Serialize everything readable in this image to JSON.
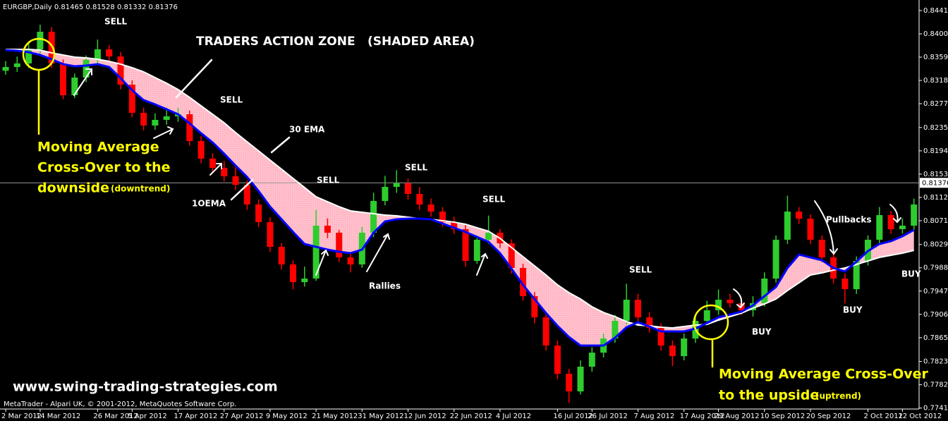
{
  "chart_data": {
    "type": "candlestick",
    "title": "EURGBP,Daily  0.81465 0.81528 0.81332 0.81376",
    "categories": [
      "2 Mar 2012",
      null,
      null,
      "14 Mar 2012",
      null,
      null,
      null,
      null,
      "26 Mar 2012",
      null,
      null,
      "5 Apr 2012",
      null,
      null,
      null,
      "17 Apr 2012",
      null,
      null,
      null,
      "27 Apr 2012",
      null,
      null,
      null,
      "9 May 2012",
      null,
      null,
      null,
      "21 May 2012",
      null,
      null,
      null,
      "31 May 2012",
      null,
      null,
      null,
      "12 Jun 2012",
      null,
      null,
      null,
      "22 Jun 2012",
      null,
      null,
      null,
      "4 Jul 2012",
      null,
      null,
      null,
      null,
      "16 Jul 2012",
      null,
      null,
      "26 Jul 2012",
      null,
      null,
      null,
      "7 Aug 2012",
      null,
      null,
      null,
      "17 Aug 2012",
      null,
      null,
      "29 Aug 2012",
      null,
      null,
      null,
      "10 Sep 2012",
      null,
      null,
      null,
      "20 Sep 2012",
      null,
      null,
      null,
      null,
      "2 Oct 2012",
      null,
      null,
      "12 Oct 2012",
      null
    ],
    "open": [
      0.8335,
      0.83416,
      0.83479,
      0.83727,
      0.84037,
      0.83479,
      0.8292,
      0.8323,
      0.83541,
      0.83727,
      0.83603,
      0.83106,
      0.82609,
      0.82386,
      0.82485,
      0.82547,
      0.82584,
      0.82112,
      0.81802,
      0.8164,
      0.81491,
      0.81342,
      0.80995,
      0.80684,
      0.80249,
      0.79939,
      0.79628,
      0.7969,
      0.80622,
      0.80498,
      0.80063,
      0.79939,
      0.80498,
      0.81057,
      0.81305,
      0.81367,
      0.81181,
      0.80995,
      0.8087,
      0.80684,
      0.8056,
      0.80001,
      0.80374,
      0.80498,
      0.80311,
      0.79877,
      0.7938,
      0.79007,
      0.78511,
      0.78014,
      0.77703,
      0.78138,
      0.78386,
      0.78635,
      0.78945,
      0.79318,
      0.79007,
      0.78821,
      0.78511,
      0.78324,
      0.78635,
      0.78945,
      0.79132,
      0.79318,
      0.79256,
      0.79132,
      0.79256,
      0.7969,
      0.80374,
      0.8087,
      0.80746,
      0.80374,
      0.80063,
      0.7969,
      0.79504,
      0.80001,
      0.80374,
      0.80808,
      0.8056,
      0.80622
    ],
    "high": [
      0.8352,
      0.836,
      0.8385,
      0.8416,
      0.8412,
      0.8355,
      0.833,
      0.8362,
      0.839,
      0.838,
      0.8368,
      0.8318,
      0.827,
      0.826,
      0.827,
      0.827,
      0.8265,
      0.822,
      0.819,
      0.8176,
      0.817,
      0.8142,
      0.8108,
      0.8077,
      0.8032,
      0.8001,
      0.799,
      0.809,
      0.8075,
      0.8055,
      0.8015,
      0.806,
      0.812,
      0.815,
      0.816,
      0.8145,
      0.813,
      0.811,
      0.8095,
      0.8078,
      0.8065,
      0.8045,
      0.808,
      0.8056,
      0.8038,
      0.7995,
      0.7945,
      0.7908,
      0.786,
      0.781,
      0.7825,
      0.7848,
      0.7872,
      0.7905,
      0.796,
      0.7942,
      0.791,
      0.789,
      0.786,
      0.7872,
      0.7905,
      0.793,
      0.795,
      0.7942,
      0.7935,
      0.7938,
      0.798,
      0.8045,
      0.8115,
      0.8095,
      0.8082,
      0.8045,
      0.8015,
      0.7978,
      0.8008,
      0.8045,
      0.8095,
      0.8088,
      0.8075,
      0.811
    ],
    "low": [
      0.8328,
      0.8333,
      0.834,
      0.8365,
      0.834,
      0.8285,
      0.8287,
      0.8315,
      0.8348,
      0.8352,
      0.8302,
      0.8253,
      0.823,
      0.8231,
      0.824,
      0.8245,
      0.8203,
      0.8172,
      0.8155,
      0.814,
      0.8125,
      0.809,
      0.806,
      0.8016,
      0.7985,
      0.795,
      0.7955,
      0.7965,
      0.804,
      0.7998,
      0.798,
      0.7988,
      0.8042,
      0.8098,
      0.812,
      0.8108,
      0.809,
      0.8078,
      0.806,
      0.8048,
      0.799,
      0.7995,
      0.803,
      0.8023,
      0.7978,
      0.793,
      0.789,
      0.7842,
      0.7792,
      0.775,
      0.7765,
      0.7805,
      0.783,
      0.7856,
      0.7888,
      0.7892,
      0.7874,
      0.7842,
      0.7815,
      0.7825,
      0.7856,
      0.7888,
      0.7905,
      0.7918,
      0.7905,
      0.7902,
      0.792,
      0.7962,
      0.803,
      0.8065,
      0.803,
      0.7998,
      0.796,
      0.7925,
      0.7942,
      0.7992,
      0.803,
      0.8048,
      0.8048,
      0.8055
    ],
    "close": [
      0.83416,
      0.83479,
      0.83727,
      0.84037,
      0.83479,
      0.8292,
      0.8323,
      0.83541,
      0.83727,
      0.83603,
      0.83106,
      0.82609,
      0.82386,
      0.82485,
      0.82547,
      0.82584,
      0.82112,
      0.81802,
      0.8164,
      0.81491,
      0.81342,
      0.80995,
      0.80684,
      0.80249,
      0.79939,
      0.79628,
      0.7969,
      0.80622,
      0.80498,
      0.80063,
      0.79939,
      0.80498,
      0.81057,
      0.81305,
      0.81367,
      0.81181,
      0.80995,
      0.8087,
      0.80684,
      0.8056,
      0.80001,
      0.80374,
      0.80498,
      0.80311,
      0.79877,
      0.7938,
      0.79007,
      0.78511,
      0.78014,
      0.77703,
      0.78138,
      0.78386,
      0.78635,
      0.78945,
      0.79318,
      0.79007,
      0.78821,
      0.78511,
      0.78324,
      0.78635,
      0.78945,
      0.79132,
      0.79318,
      0.79256,
      0.79132,
      0.79256,
      0.7969,
      0.80374,
      0.8087,
      0.80746,
      0.80374,
      0.80063,
      0.7969,
      0.79504,
      0.80001,
      0.80374,
      0.80808,
      0.8056,
      0.80622,
      0.80995
    ],
    "up_color": "#2ecc2e",
    "down_color": "#ff0000",
    "overlays": [
      {
        "color": "#ffffff",
        "values": [
          0.83727,
          0.83727,
          0.83727,
          0.83715,
          0.83665,
          0.83628,
          0.8359,
          0.83578,
          0.83553,
          0.83516,
          0.83466,
          0.83404,
          0.8333,
          0.8323,
          0.83131,
          0.83019,
          0.82882,
          0.82733,
          0.82584,
          0.82435,
          0.82261,
          0.821,
          0.81938,
          0.81777,
          0.81616,
          0.81454,
          0.81293,
          0.81131,
          0.81044,
          0.80957,
          0.80883,
          0.80858,
          0.80833,
          0.80808,
          0.80796,
          0.80771,
          0.80746,
          0.80734,
          0.80709,
          0.80684,
          0.80647,
          0.80585,
          0.80523,
          0.80398,
          0.80237,
          0.80075,
          0.79914,
          0.79753,
          0.79579,
          0.79442,
          0.7933,
          0.79194,
          0.79094,
          0.7902,
          0.78933,
          0.78871,
          0.78858,
          0.78833,
          0.78821,
          0.78846,
          0.78871,
          0.78883,
          0.78958,
          0.7902,
          0.79082,
          0.79169,
          0.79243,
          0.7933,
          0.79479,
          0.79616,
          0.79753,
          0.7979,
          0.79839,
          0.79877,
          0.79939,
          0.80001,
          0.80063,
          0.801,
          0.80138,
          0.80187
        ]
      },
      {
        "color": "#0000ff",
        "values": [
          0.83715,
          0.83702,
          0.83677,
          0.83628,
          0.83553,
          0.83466,
          0.83429,
          0.83441,
          0.83466,
          0.83416,
          0.83218,
          0.83007,
          0.82833,
          0.82758,
          0.82671,
          0.82584,
          0.82423,
          0.82249,
          0.82088,
          0.81889,
          0.81678,
          0.81479,
          0.81231,
          0.80957,
          0.80734,
          0.8051,
          0.80299,
          0.80249,
          0.802,
          0.80162,
          0.80138,
          0.802,
          0.80498,
          0.80696,
          0.80734,
          0.80746,
          0.80746,
          0.80734,
          0.80659,
          0.80585,
          0.8051,
          0.80423,
          0.80336,
          0.80138,
          0.79864,
          0.79579,
          0.7933,
          0.79082,
          0.78858,
          0.7866,
          0.78511,
          0.78511,
          0.78511,
          0.78647,
          0.78833,
          0.7892,
          0.78846,
          0.78759,
          0.78759,
          0.78759,
          0.78809,
          0.78908,
          0.79007,
          0.79057,
          0.79107,
          0.79218,
          0.7938,
          0.79541,
          0.79877,
          0.80113,
          0.80063,
          0.80013,
          0.79877,
          0.79815,
          0.79989,
          0.80175,
          0.80299,
          0.80349,
          0.80436,
          0.80547
        ]
      }
    ],
    "zone_color": "#ffc0cb",
    "current_price": 0.81376,
    "ylim": [
      0.77393,
      0.84596
    ],
    "yticks": [
      {
        "value": 0.8441,
        "label": "0.84410"
      },
      {
        "value": 0.84,
        "label": "0.84000"
      },
      {
        "value": 0.8359,
        "label": "0.83590"
      },
      {
        "value": 0.8318,
        "label": "0.83180"
      },
      {
        "value": 0.8277,
        "label": "0.82770"
      },
      {
        "value": 0.8235,
        "label": "0.82350"
      },
      {
        "value": 0.8194,
        "label": "0.81940"
      },
      {
        "value": 0.8153,
        "label": "0.81530"
      },
      {
        "value": 0.8112,
        "label": "0.81120"
      },
      {
        "value": 0.8071,
        "label": "0.80710"
      },
      {
        "value": 0.8029,
        "label": "0.80290"
      },
      {
        "value": 0.7988,
        "label": "0.79880"
      },
      {
        "value": 0.7947,
        "label": "0.79470"
      },
      {
        "value": 0.7906,
        "label": "0.79060"
      },
      {
        "value": 0.7865,
        "label": "0.78650"
      },
      {
        "value": 0.7823,
        "label": "0.78230"
      },
      {
        "value": 0.7782,
        "label": "0.77820"
      },
      {
        "value": 0.7741,
        "label": "0.77410"
      }
    ],
    "annotations": [
      "TRADERS ACTION ZONE",
      "(SHADED AREA)",
      "SELL",
      "SELL",
      "SELL",
      "SELL",
      "SELL",
      "SELL",
      "30 EMA",
      "1OEMA",
      "Rallies",
      "Pullbacks",
      "BUY",
      "BUY",
      "BUY",
      "Moving Average",
      "Cross-Over to the",
      "downside",
      "(downtrend)",
      "Moving Average Cross-Over",
      "to the upside",
      "(uptrend)",
      "www.swing-trading-strategies.com",
      "MetaTrader - Alpari UK, © 2001-2012, MetaQuotes Software Corp."
    ]
  }
}
